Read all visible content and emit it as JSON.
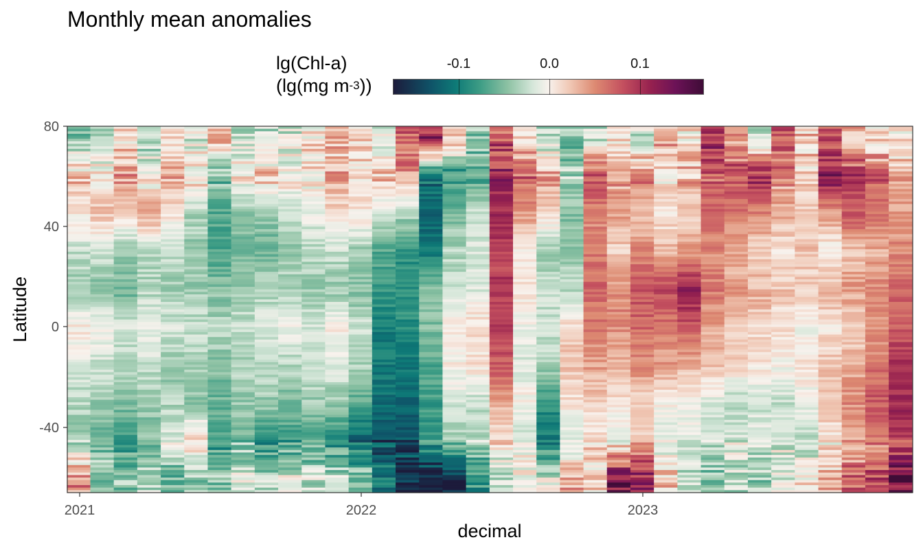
{
  "chart_data": {
    "type": "heatmap",
    "title": "Monthly mean anomalies",
    "xlabel": "decimal",
    "ylabel": "Latitude",
    "legend": {
      "title_line1": "lg(Chl-a)",
      "title_line2_prefix": "(lg(mg m",
      "title_line2_sup": "-3",
      "title_line2_suffix": "))",
      "ticks": [
        "-0.1",
        "0.0",
        "0.1"
      ],
      "tick_values": [
        -0.1,
        0.0,
        0.1
      ],
      "range": [
        -0.2,
        0.17
      ],
      "placement": "top"
    },
    "x_ticks": [
      "2021",
      "2022",
      "2023"
    ],
    "x_tick_values": [
      2021,
      2022,
      2023
    ],
    "xlim": [
      2020.96,
      2023.96
    ],
    "y_ticks": [
      "80",
      "40",
      "0",
      "-40"
    ],
    "y_tick_values": [
      80,
      40,
      0,
      -40
    ],
    "ylim": [
      -66,
      80
    ],
    "months": [
      "2021-01",
      "2021-02",
      "2021-03",
      "2021-04",
      "2021-05",
      "2021-06",
      "2021-07",
      "2021-08",
      "2021-09",
      "2021-10",
      "2021-11",
      "2021-12",
      "2022-01",
      "2022-02",
      "2022-03",
      "2022-04",
      "2022-05",
      "2022-06",
      "2022-07",
      "2022-08",
      "2022-09",
      "2022-10",
      "2022-11",
      "2022-12",
      "2023-01",
      "2023-02",
      "2023-03",
      "2023-04",
      "2023-05",
      "2023-06",
      "2023-07",
      "2023-08",
      "2023-09",
      "2023-10",
      "2023-11",
      "2023-12"
    ],
    "lat_bands": [
      75,
      60,
      45,
      30,
      15,
      0,
      -15,
      -30,
      -45,
      -60
    ],
    "anomaly_by_band": [
      [
        -0.06,
        -0.04,
        0.02,
        -0.05,
        0.03,
        -0.02,
        0.04,
        -0.03,
        -0.04,
        -0.02,
        0.01,
        0.03,
        0.02,
        -0.01,
        0.08,
        0.12,
        0.04,
        -0.05,
        0.09,
        0.02,
        -0.04,
        -0.06,
        -0.03,
        0.02,
        -0.02,
        0.05,
        0.01,
        0.12,
        0.04,
        -0.02,
        0.1,
        0.03,
        0.08,
        0.04,
        0.02,
        0.01
      ],
      [
        0.03,
        0.02,
        0.05,
        0.0,
        0.04,
        0.02,
        -0.06,
        0.01,
        0.03,
        0.0,
        0.02,
        0.04,
        0.02,
        0.03,
        0.06,
        -0.12,
        -0.1,
        -0.08,
        0.12,
        0.08,
        0.05,
        -0.04,
        0.1,
        0.06,
        0.07,
        0.02,
        0.04,
        0.08,
        0.1,
        0.12,
        0.06,
        0.02,
        0.14,
        0.1,
        0.08,
        0.04
      ],
      [
        0.01,
        0.03,
        0.02,
        0.05,
        0.01,
        -0.04,
        -0.08,
        -0.06,
        -0.05,
        -0.03,
        -0.01,
        0.02,
        0.01,
        -0.02,
        -0.04,
        -0.14,
        -0.06,
        -0.03,
        0.12,
        0.05,
        0.02,
        -0.06,
        0.06,
        0.05,
        0.03,
        0.01,
        0.02,
        0.08,
        0.07,
        0.06,
        0.04,
        0.03,
        0.05,
        0.09,
        0.08,
        0.05
      ],
      [
        -0.03,
        -0.02,
        -0.05,
        -0.04,
        -0.03,
        -0.05,
        -0.08,
        -0.06,
        -0.07,
        -0.05,
        -0.04,
        -0.03,
        -0.05,
        -0.08,
        -0.1,
        -0.12,
        -0.04,
        -0.02,
        0.1,
        0.01,
        -0.05,
        -0.05,
        0.07,
        0.02,
        0.06,
        0.04,
        0.05,
        0.06,
        0.04,
        0.02,
        0.01,
        0.03,
        0.0,
        0.03,
        0.04,
        0.06
      ],
      [
        -0.05,
        -0.06,
        -0.07,
        -0.04,
        -0.05,
        -0.05,
        -0.06,
        -0.05,
        -0.04,
        -0.04,
        -0.05,
        -0.05,
        -0.06,
        -0.09,
        -0.1,
        -0.05,
        -0.03,
        -0.02,
        0.11,
        0.01,
        -0.03,
        -0.04,
        0.08,
        0.06,
        0.09,
        0.1,
        0.13,
        0.07,
        0.05,
        0.04,
        0.03,
        0.02,
        0.04,
        0.05,
        0.06,
        0.08
      ],
      [
        0.01,
        0.0,
        -0.02,
        -0.01,
        -0.02,
        -0.03,
        -0.04,
        -0.03,
        -0.02,
        -0.01,
        -0.02,
        0.0,
        -0.03,
        -0.12,
        -0.1,
        -0.06,
        0.01,
        0.02,
        0.1,
        -0.01,
        -0.03,
        0.02,
        0.07,
        0.06,
        0.08,
        0.07,
        0.09,
        0.05,
        0.03,
        0.02,
        0.01,
        -0.01,
        0.01,
        0.02,
        0.05,
        0.09
      ],
      [
        -0.02,
        -0.03,
        -0.04,
        -0.03,
        -0.05,
        -0.04,
        -0.06,
        -0.04,
        -0.03,
        -0.04,
        -0.03,
        -0.02,
        -0.04,
        -0.12,
        -0.12,
        -0.08,
        0.0,
        0.01,
        0.09,
        -0.02,
        -0.04,
        0.03,
        0.05,
        0.04,
        0.06,
        0.05,
        0.04,
        0.03,
        0.02,
        0.01,
        0.0,
        0.01,
        0.03,
        0.04,
        0.07,
        0.11
      ],
      [
        -0.04,
        -0.05,
        -0.06,
        -0.05,
        -0.04,
        -0.06,
        -0.07,
        -0.05,
        -0.05,
        -0.06,
        -0.05,
        -0.05,
        -0.08,
        -0.13,
        -0.14,
        -0.09,
        -0.02,
        -0.03,
        0.04,
        0.0,
        -0.1,
        0.01,
        0.02,
        0.01,
        0.02,
        0.0,
        -0.01,
        -0.02,
        -0.04,
        -0.03,
        -0.03,
        -0.01,
        0.03,
        0.06,
        0.09,
        0.12
      ],
      [
        -0.05,
        -0.07,
        -0.09,
        -0.06,
        -0.02,
        0.03,
        -0.09,
        -0.06,
        -0.1,
        -0.09,
        -0.08,
        -0.1,
        -0.14,
        -0.16,
        -0.15,
        -0.09,
        -0.05,
        -0.04,
        0.02,
        -0.03,
        -0.12,
        -0.02,
        0.01,
        -0.01,
        0.03,
        -0.02,
        -0.01,
        -0.03,
        -0.02,
        -0.01,
        -0.02,
        -0.04,
        0.01,
        0.04,
        0.07,
        0.1
      ],
      [
        0.06,
        -0.05,
        -0.06,
        -0.04,
        -0.08,
        -0.05,
        -0.06,
        -0.02,
        -0.04,
        -0.02,
        -0.03,
        -0.03,
        -0.05,
        -0.12,
        -0.18,
        -0.2,
        -0.19,
        -0.1,
        -0.04,
        0.01,
        -0.02,
        0.04,
        0.02,
        0.14,
        0.12,
        0.03,
        -0.04,
        -0.06,
        -0.03,
        -0.05,
        -0.02,
        0.01,
        0.03,
        0.08,
        0.1,
        0.14
      ]
    ]
  }
}
